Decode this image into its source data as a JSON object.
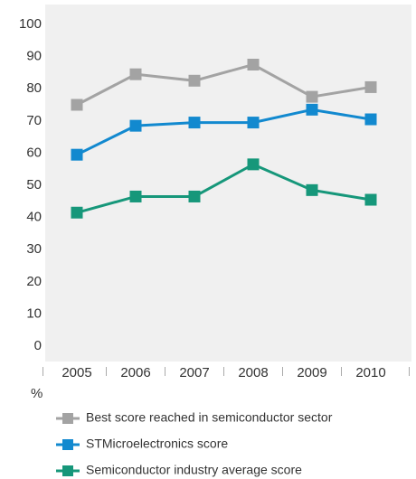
{
  "chart_data": {
    "type": "line",
    "categories": [
      "2005",
      "2006",
      "2007",
      "2008",
      "2009",
      "2010"
    ],
    "series": [
      {
        "name": "Best score reached in semiconductor sector",
        "color": "#a3a3a3",
        "values": [
          75,
          84.5,
          82.5,
          87.5,
          77.5,
          80.5
        ]
      },
      {
        "name": "STMicroelectronics score",
        "color": "#1289cf",
        "values": [
          59.5,
          68.5,
          69.5,
          69.5,
          73.5,
          70.5
        ]
      },
      {
        "name": "Semiconductor industry average score",
        "color": "#16977a",
        "values": [
          41.5,
          46.5,
          46.5,
          56.5,
          48.5,
          45.5
        ]
      }
    ],
    "y_label": "%",
    "ylim": [
      0,
      100
    ],
    "yticks": [
      0,
      10,
      20,
      30,
      40,
      50,
      60,
      70,
      80,
      90,
      100
    ]
  }
}
